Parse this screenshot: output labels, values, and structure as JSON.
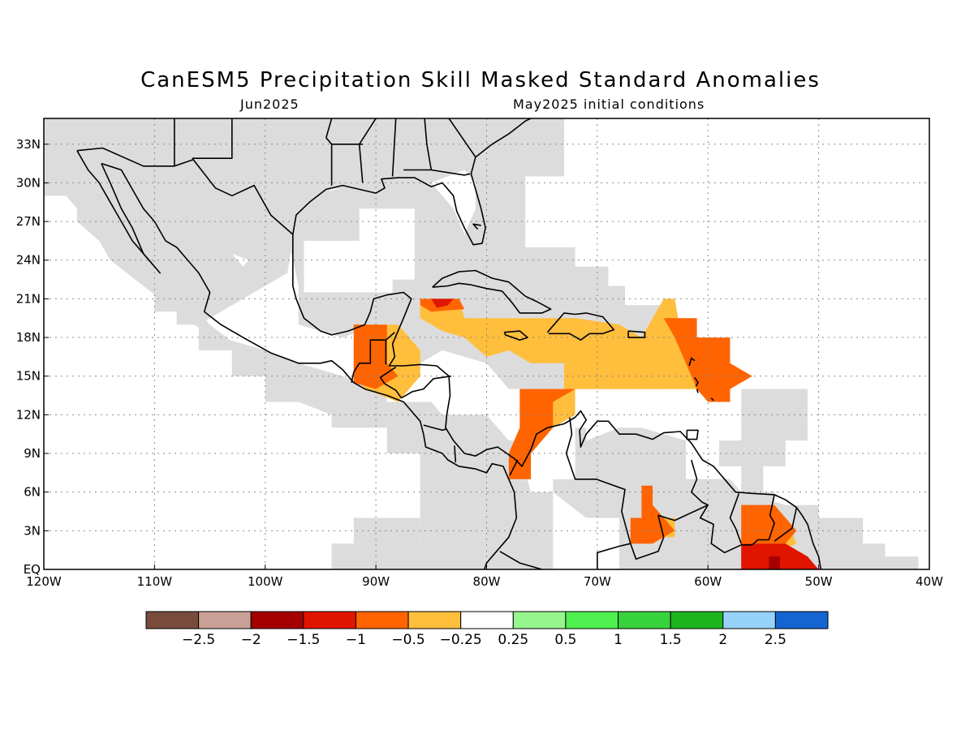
{
  "header": {
    "title": "CanESM5 Precipitation Skill Masked Standard Anomalies",
    "left": "Jun2025",
    "right": "May2025 initial conditions"
  },
  "map": {
    "lon_range": [
      -120,
      -40
    ],
    "lat_range": [
      0,
      35
    ],
    "lon_ticks": [
      {
        "lon": -120,
        "label": "120W"
      },
      {
        "lon": -110,
        "label": "110W"
      },
      {
        "lon": -100,
        "label": "100W"
      },
      {
        "lon": -90,
        "label": "90W"
      },
      {
        "lon": -80,
        "label": "80W"
      },
      {
        "lon": -70,
        "label": "70W"
      },
      {
        "lon": -60,
        "label": "60W"
      },
      {
        "lon": -50,
        "label": "50W"
      },
      {
        "lon": -40,
        "label": "40W"
      }
    ],
    "lat_ticks": [
      {
        "lat": 0,
        "label": "EQ"
      },
      {
        "lat": 3,
        "label": "3N"
      },
      {
        "lat": 6,
        "label": "6N"
      },
      {
        "lat": 9,
        "label": "9N"
      },
      {
        "lat": 12,
        "label": "12N"
      },
      {
        "lat": 15,
        "label": "15N"
      },
      {
        "lat": 18,
        "label": "18N"
      },
      {
        "lat": 21,
        "label": "21N"
      },
      {
        "lat": 24,
        "label": "24N"
      },
      {
        "lat": 27,
        "label": "27N"
      },
      {
        "lat": 30,
        "label": "30N"
      },
      {
        "lat": 33,
        "label": "33N"
      }
    ],
    "colors": {
      "masked": "#dcdcdc",
      "coast": "#000000",
      "c_m025": "#ffbe3c",
      "c_m05": "#ff6400",
      "c_m1": "#e11400",
      "c_m15": "#a50000"
    }
  },
  "colorbar": {
    "colors": [
      "#784b3c",
      "#c8a096",
      "#a50000",
      "#e11400",
      "#ff6400",
      "#ffbe3c",
      "#ffffff",
      "#96f58c",
      "#50f050",
      "#37d23c",
      "#1eb41e",
      "#96d2fa",
      "#1464d2"
    ],
    "labels": [
      "−2.5",
      "−2",
      "−1.5",
      "−1",
      "−0.5",
      "−0.25",
      "0.25",
      "0.5",
      "1",
      "1.5",
      "2",
      "2.5"
    ]
  }
}
